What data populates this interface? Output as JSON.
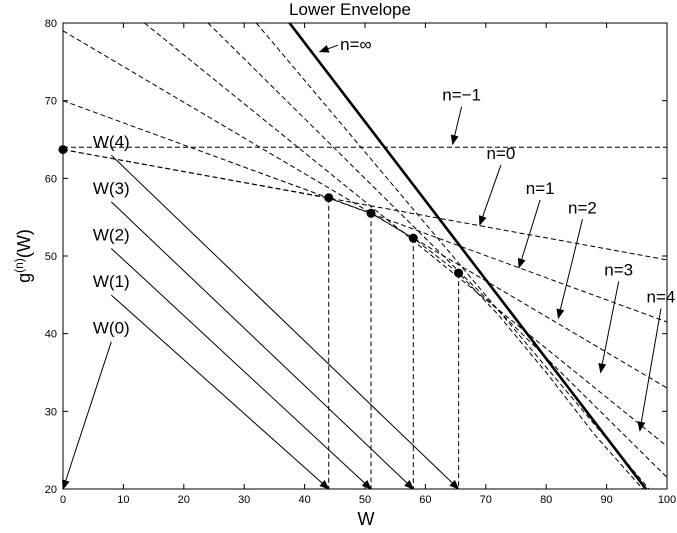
{
  "chart_data": {
    "type": "line",
    "title": "Lower Envelope",
    "xlabel": "W",
    "ylabel": "g(n)(W)",
    "ylabel_main": "g",
    "ylabel_sup": "(n)",
    "ylabel_tail": "(W)",
    "xlim": [
      0,
      100
    ],
    "ylim": [
      20,
      80
    ],
    "grid": false,
    "xticks": [
      "0",
      "10",
      "20",
      "30",
      "40",
      "50",
      "60",
      "70",
      "80",
      "90",
      "100"
    ],
    "yticks": [
      "20",
      "30",
      "40",
      "50",
      "60",
      "70",
      "80"
    ],
    "series": [
      {
        "name": "n=−1",
        "style": "dashed",
        "x": [
          0,
          100
        ],
        "y": [
          64,
          64
        ]
      },
      {
        "name": "n=0",
        "style": "dashed",
        "x": [
          0,
          100
        ],
        "y": [
          63.7,
          49.5
        ]
      },
      {
        "name": "n=1",
        "style": "dashed",
        "x": [
          0,
          100
        ],
        "y": [
          70,
          41.5
        ]
      },
      {
        "name": "n=2",
        "style": "dashed",
        "x": [
          0,
          100
        ],
        "y": [
          79,
          33
        ]
      },
      {
        "name": "n=3",
        "style": "dashed",
        "x": [
          13.5,
          100
        ],
        "y": [
          80,
          25.5
        ]
      },
      {
        "name": "n=4",
        "style": "dashed",
        "x": [
          24,
          100
        ],
        "y": [
          80,
          21.5
        ]
      },
      {
        "name": "",
        "style": "dashed",
        "x": [
          32,
          97
        ],
        "y": [
          80,
          20
        ]
      },
      {
        "name": "",
        "style": "dashed",
        "x": [
          0,
          44,
          51,
          58,
          65.5,
          72,
          80,
          88,
          96
        ],
        "y": [
          63.7,
          57.5,
          55.5,
          52.3,
          47.8,
          42.5,
          35,
          27,
          20
        ]
      },
      {
        "name": "n=∞",
        "style": "solid",
        "x": [
          37.5,
          96.5
        ],
        "y": [
          80,
          20
        ]
      }
    ],
    "points": [
      {
        "name": "W(0)",
        "x": 0,
        "y": 63.7
      },
      {
        "name": "W(1)",
        "x": 44,
        "y": 57.5
      },
      {
        "name": "W(2)",
        "x": 51,
        "y": 55.5
      },
      {
        "name": "W(3)",
        "x": 58,
        "y": 52.3
      },
      {
        "name": "W(4)",
        "x": 65.5,
        "y": 47.8
      }
    ],
    "w_annotations": [
      {
        "text": "W(0)",
        "lx": 8,
        "ly": 40,
        "tx": 0,
        "ty": 20
      },
      {
        "text": "W(1)",
        "lx": 8,
        "ly": 46,
        "tx": 44,
        "ty": 20
      },
      {
        "text": "W(2)",
        "lx": 8,
        "ly": 52,
        "tx": 51,
        "ty": 20
      },
      {
        "text": "W(3)",
        "lx": 8,
        "ly": 58,
        "tx": 58,
        "ty": 20
      },
      {
        "text": "W(4)",
        "lx": 8,
        "ly": 64,
        "tx": 65.5,
        "ty": 20
      }
    ],
    "curve_annotations": [
      {
        "text": "n=∞",
        "lx": 48.5,
        "ly": 76.5,
        "tx": 42.5,
        "ty": 76.3
      },
      {
        "text": "n=−1",
        "lx": 66,
        "ly": 70,
        "tx": 64.5,
        "ty": 64.4
      },
      {
        "text": "n=0",
        "lx": 72.5,
        "ly": 62.5,
        "tx": 69,
        "ty": 54
      },
      {
        "text": "n=1",
        "lx": 79,
        "ly": 58,
        "tx": 75.5,
        "ty": 48.5
      },
      {
        "text": "n=2",
        "lx": 86,
        "ly": 55.5,
        "tx": 82,
        "ty": 42
      },
      {
        "text": "n=3",
        "lx": 92,
        "ly": 47.5,
        "tx": 89,
        "ty": 35
      },
      {
        "text": "n=4",
        "lx": 99,
        "ly": 44,
        "tx": 95.5,
        "ty": 27.5
      }
    ]
  }
}
